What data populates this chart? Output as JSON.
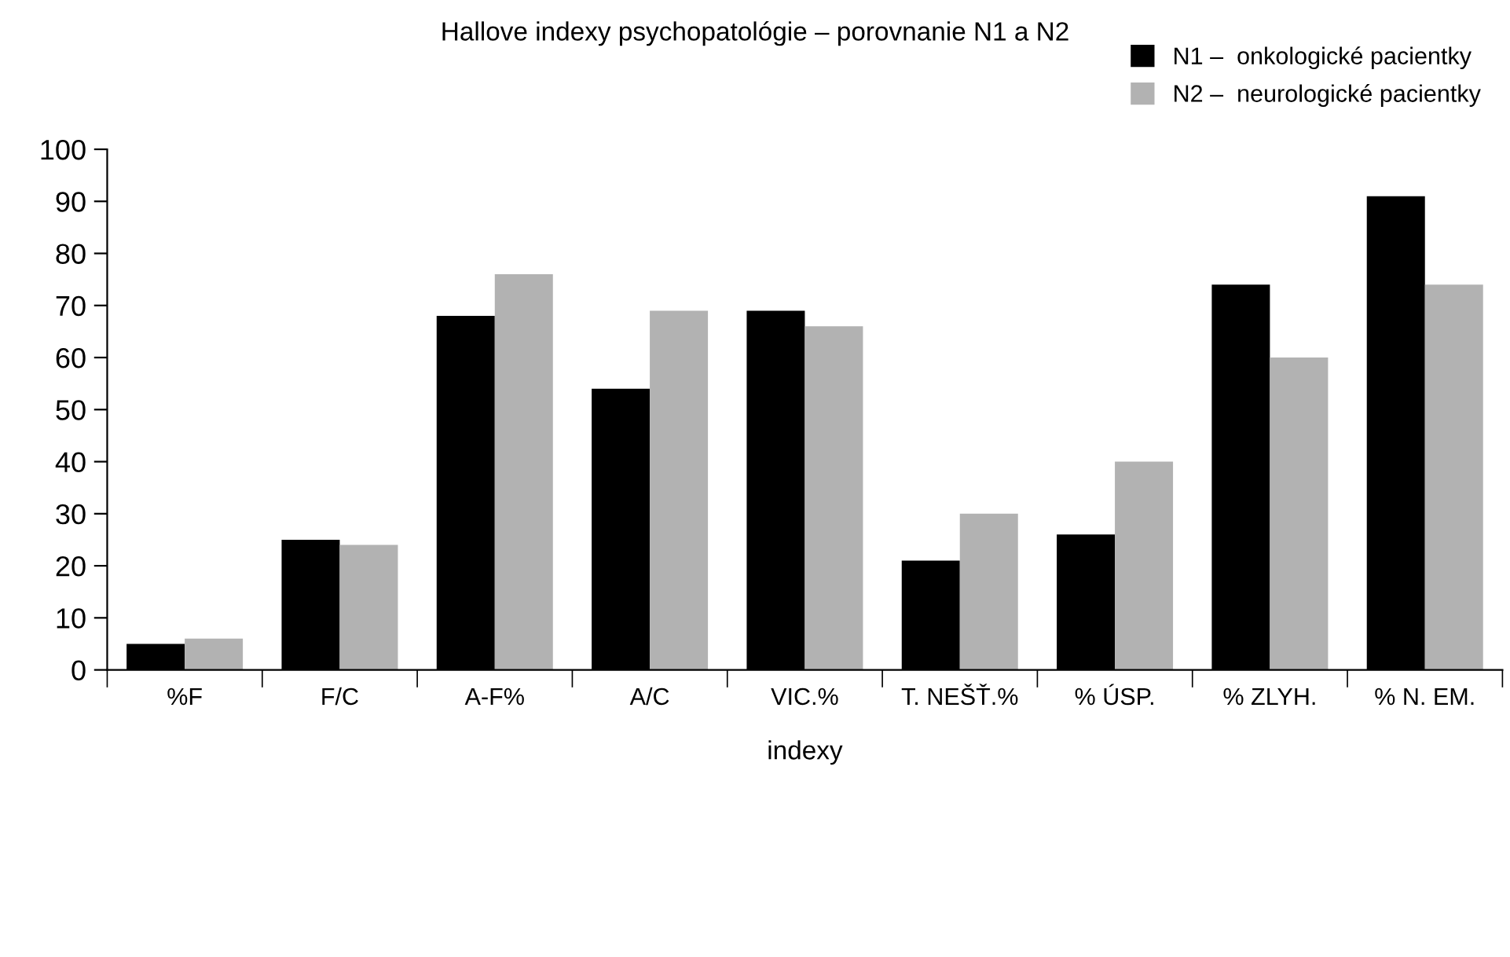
{
  "chart_data": {
    "type": "bar",
    "title": "Hallove indexy psychopatológie – porovnanie N1 a N2",
    "xlabel": "indexy",
    "categories": [
      "%F",
      "F/C",
      "A-F%",
      "A/C",
      "VIC.%",
      "T. NEŠŤ.%",
      "% ÚSP.",
      "% ZLYH.",
      "% N. EM."
    ],
    "series": [
      {
        "name": "N1 –  onkologické pacientky",
        "color": "#000000",
        "values": [
          5,
          25,
          68,
          54,
          69,
          21,
          26,
          74,
          91
        ]
      },
      {
        "name": "N2 –  neurologické pacientky",
        "color": "#b2b2b2",
        "values": [
          6,
          24,
          76,
          69,
          66,
          30,
          40,
          60,
          74
        ]
      }
    ],
    "ylim": [
      0,
      100
    ],
    "yticks": [
      0,
      10,
      20,
      30,
      40,
      50,
      60,
      70,
      80,
      90,
      100
    ],
    "grid": false,
    "legend": "top right"
  }
}
